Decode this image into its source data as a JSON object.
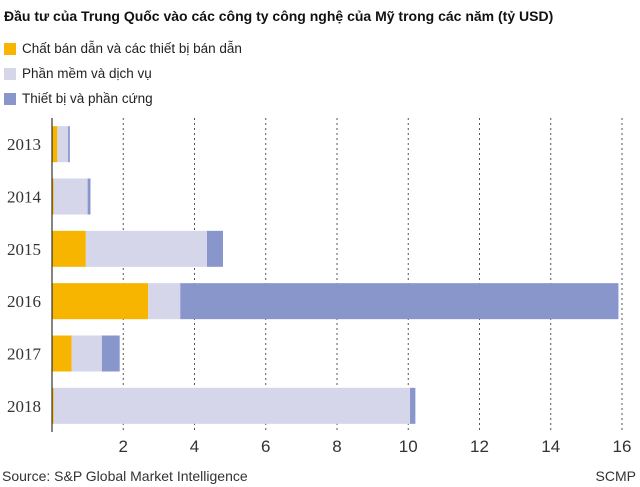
{
  "chart_data": {
    "type": "bar",
    "orientation": "horizontal",
    "stacked": true,
    "title": "Đầu tư của Trung Quốc vào các công ty công nghệ của Mỹ trong các năm (tỷ USD)",
    "categories": [
      "2013",
      "2014",
      "2015",
      "2016",
      "2017",
      "2018"
    ],
    "series": [
      {
        "name": "Chất bán dẫn và các thiết bị bán dẫn",
        "color": "#f7b500",
        "values": [
          0.15,
          0.05,
          0.95,
          2.7,
          0.55,
          0.05
        ]
      },
      {
        "name": "Phần mềm và dịch vụ",
        "color": "#d5d6ea",
        "values": [
          0.3,
          0.95,
          3.4,
          0.9,
          0.85,
          10.0
        ]
      },
      {
        "name": "Thiết bị và phần cứng",
        "color": "#8896cb",
        "values": [
          0.05,
          0.08,
          0.45,
          12.3,
          0.5,
          0.15
        ]
      }
    ],
    "xlim": [
      0,
      16
    ],
    "xticks": [
      "2",
      "4",
      "6",
      "8",
      "10",
      "12",
      "14",
      "16"
    ],
    "grid": "vertical-dashed",
    "legend_position": "top-left"
  },
  "footer": {
    "source": "Source: S&P Global Market Intelligence",
    "credit": "SCMP"
  }
}
